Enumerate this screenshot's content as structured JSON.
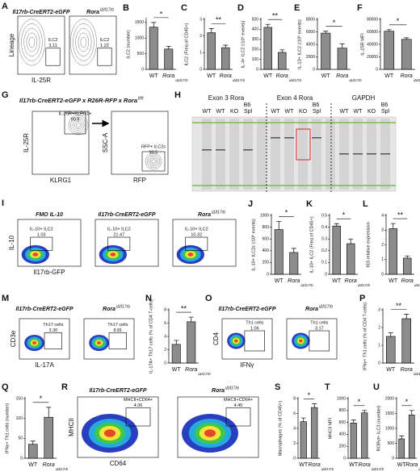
{
  "chart_data": [
    {
      "type": "bar",
      "panel": "B",
      "y_label": "ILC2 (number)",
      "categories": [
        "WT",
        "Rora"
      ],
      "category_superscript": "iΔIl17rb",
      "values": [
        1350,
        650
      ],
      "errors": [
        150,
        90
      ],
      "ylim": [
        0,
        1600
      ],
      "yticks": [
        0,
        500,
        1000,
        1500
      ],
      "significance": "*",
      "color": "#8c8c8c"
    },
    {
      "type": "bar",
      "panel": "C",
      "y_label": "ILC2 (Freq of CD45+)",
      "categories": [
        "WT",
        "Rora"
      ],
      "category_superscript": "iΔIl17rb",
      "values": [
        2.2,
        1.3
      ],
      "errors": [
        0.25,
        0.15
      ],
      "ylim": [
        0,
        3
      ],
      "yticks": [
        0,
        1,
        2,
        3
      ],
      "significance": "**",
      "color": "#8c8c8c"
    },
    {
      "type": "bar",
      "panel": "D",
      "y_label": "IL-4+ ILC2 (/10⁵ events)",
      "categories": [
        "WT",
        "Rora"
      ],
      "category_superscript": "iΔIl17rb",
      "values": [
        420,
        170
      ],
      "errors": [
        30,
        25
      ],
      "ylim": [
        0,
        500
      ],
      "yticks": [
        0,
        100,
        200,
        300,
        400,
        500
      ],
      "significance": "**",
      "color": "#8c8c8c"
    },
    {
      "type": "bar",
      "panel": "E",
      "y_label": "IL-13+ ILC2 (/10⁵ events)",
      "categories": [
        "WT",
        "Rora"
      ],
      "category_superscript": "iΔIl17rb",
      "values": [
        5800,
        3400
      ],
      "errors": [
        300,
        700
      ],
      "ylim": [
        0,
        8000
      ],
      "yticks": [
        0,
        2000,
        4000,
        6000,
        8000
      ],
      "significance": "*",
      "color": "#8c8c8c"
    },
    {
      "type": "bar",
      "panel": "F",
      "y_label": "IL-25R MFI",
      "categories": [
        "WT",
        "Rora"
      ],
      "category_superscript": "iΔIl17rb",
      "values": [
        61000,
        48000
      ],
      "errors": [
        2500,
        2500
      ],
      "ylim": [
        0,
        80000
      ],
      "yticks": [
        0,
        20000,
        40000,
        60000,
        80000
      ],
      "significance": "*",
      "color": "#8c8c8c"
    },
    {
      "type": "bar",
      "panel": "J",
      "y_label": "IL-10+ ILC2s (/10⁶ events)",
      "categories": [
        "WT",
        "Rora"
      ],
      "category_superscript": "iΔIl17rb",
      "values": [
        760,
        370
      ],
      "errors": [
        140,
        70
      ],
      "ylim": [
        0,
        1000
      ],
      "yticks": [
        0,
        200,
        400,
        600,
        800,
        1000
      ],
      "significance": "*",
      "color": "#8c8c8c"
    },
    {
      "type": "bar",
      "panel": "K",
      "y_label": "IL-10+ ILC2 (Freq of CD45+)",
      "categories": [
        "WT",
        "Rora"
      ],
      "category_superscript": "iΔIl17rb",
      "values": [
        0.41,
        0.26
      ],
      "errors": [
        0.02,
        0.04
      ],
      "ylim": [
        0,
        0.5
      ],
      "yticks": [
        0,
        0.1,
        0.2,
        0.3,
        0.4,
        0.5
      ],
      "significance": "*",
      "color": "#8c8c8c"
    },
    {
      "type": "bar",
      "panel": "L",
      "y_label": "Il10 relative expression",
      "categories": [
        "WT",
        "Rora"
      ],
      "category_superscript": "iΔIl17rb",
      "values": [
        3.1,
        1.1
      ],
      "errors": [
        0.35,
        0.15
      ],
      "ylim": [
        0,
        4
      ],
      "yticks": [
        0,
        1,
        2,
        3,
        4
      ],
      "significance": "**",
      "color": "#8c8c8c"
    },
    {
      "type": "bar",
      "panel": "N",
      "y_label": "IL-17A+ Th17 cells (% of CD4 T-cells)",
      "categories": [
        "WT",
        "Rora"
      ],
      "category_superscript": "iΔIl17rb",
      "values": [
        2.8,
        6.2
      ],
      "errors": [
        0.6,
        0.7
      ],
      "ylim": [
        0,
        8
      ],
      "yticks": [
        0,
        2,
        4,
        6,
        8
      ],
      "significance": "**",
      "color": "#8c8c8c"
    },
    {
      "type": "bar",
      "panel": "P",
      "y_label": "IFNγ+ Th1 cells (% of CD4 T-cells)",
      "categories": [
        "WT",
        "Rora"
      ],
      "category_superscript": "iΔIl17rb",
      "values": [
        1.5,
        2.5
      ],
      "errors": [
        0.2,
        0.25
      ],
      "ylim": [
        0,
        3
      ],
      "yticks": [
        0,
        1,
        2,
        3
      ],
      "significance": "**",
      "color": "#8c8c8c"
    },
    {
      "type": "bar",
      "panel": "Q",
      "y_label": "IFNγ+ Th1 cells (number)",
      "categories": [
        "WT",
        "Rora"
      ],
      "category_superscript": "iΔIl17rb",
      "values": [
        35,
        103
      ],
      "errors": [
        8,
        25
      ],
      "ylim": [
        0,
        150
      ],
      "yticks": [
        0,
        50,
        100,
        150
      ],
      "significance": "*",
      "color": "#8c8c8c"
    },
    {
      "type": "bar",
      "panel": "S",
      "y_label": "Macrophages (% of CD45+)",
      "categories": [
        "WT",
        "Rora"
      ],
      "category_superscript": "iΔIl17rb",
      "values": [
        4.9,
        6.8
      ],
      "errors": [
        0.5,
        0.5
      ],
      "ylim": [
        0,
        8
      ],
      "yticks": [
        0,
        2,
        4,
        6,
        8
      ],
      "significance": "*",
      "color": "#8c8c8c"
    },
    {
      "type": "bar",
      "panel": "T",
      "y_label": "MHCII MFI",
      "categories": [
        "WT",
        "Rora"
      ],
      "category_superscript": "iΔIl17rb",
      "values": [
        590,
        760
      ],
      "errors": [
        50,
        40
      ],
      "ylim": [
        0,
        1000
      ],
      "yticks": [
        0,
        200,
        400,
        600,
        800,
        1000
      ],
      "significance": "*",
      "color": "#8c8c8c"
    },
    {
      "type": "bar",
      "panel": "U",
      "y_label": "RORγt+ ILC3 (number)",
      "categories": [
        "WT",
        "Rora"
      ],
      "category_superscript": "iΔIl17rb",
      "values": [
        650,
        1450
      ],
      "errors": [
        100,
        150
      ],
      "ylim": [
        0,
        2000
      ],
      "yticks": [
        0,
        500,
        1000,
        1500,
        2000
      ],
      "significance": "*",
      "color": "#8c8c8c"
    }
  ],
  "figure": {
    "a": {
      "letter": "A",
      "titles": [
        "Il17rb-CreERT2-eGFP",
        "Rora"
      ],
      "superscript": "iΔIl17rb",
      "gates": [
        [
          "ILC2",
          "3.11"
        ],
        [
          "ILC2",
          "1.22"
        ]
      ],
      "y_axis": "Lineage",
      "x_axis": "IL-25R"
    },
    "g": {
      "letter": "G",
      "title": "Il17rb-CreERT2-eGFP  x  R26R-RFP  x  Rora",
      "superscript": "fl/fl",
      "gates": [
        [
          "IL-25R+KLRG1+",
          "90.9"
        ],
        [
          "RFP+ ILC2s",
          "90.5"
        ]
      ],
      "axes": [
        "IL-25R",
        "KLRG1",
        "SSC-A",
        "RFP"
      ]
    },
    "h": {
      "letter": "H",
      "groups": [
        "Exon 3 Rora",
        "Exon 4 Rora",
        "GAPDH"
      ],
      "strains": [
        "B6",
        "B6",
        "B6"
      ],
      "lanes": [
        [
          "WT",
          "WT",
          "KO",
          "Spl"
        ],
        [
          "WT",
          "WT",
          "KO",
          "Spl"
        ],
        [
          "WT",
          "WT",
          "KO",
          "Spl"
        ]
      ]
    },
    "i": {
      "letter": "I",
      "titles": [
        "FMO IL-10",
        "Il17rb-CreERT2-eGFP",
        "Rora"
      ],
      "superscript": "iΔIl17rb",
      "gates": [
        [
          "IL-10+ ILC2",
          "1.03"
        ],
        [
          "IL-10+ ILC2",
          "21.47"
        ],
        [
          "IL-10+ ILC2",
          "10.32"
        ]
      ],
      "y_axis": "IL-10",
      "x_axis": "Il17rb-GFP"
    },
    "m": {
      "letter": "M",
      "titles": [
        "Il17rb-CreERT2-eGFP",
        "Rora"
      ],
      "superscript": "iΔIl17rb",
      "gates": [
        [
          "Th17 cells",
          "3.30"
        ],
        [
          "Th17 cells",
          "8.81"
        ]
      ],
      "y_axis": "CD3e",
      "x_axis": "IL-17A"
    },
    "o": {
      "letter": "O",
      "titles": [
        "Il17rb-CreERT2-eGFP",
        "Rora"
      ],
      "superscript": "iΔIl17rb",
      "gates": [
        [
          "Th1 cells",
          "1.06"
        ],
        [
          "Th1 cells",
          "3.17"
        ]
      ],
      "y_axis": "CD4",
      "x_axis": "IFNγ"
    },
    "r": {
      "letter": "R",
      "titles": [
        "Il17rb-CreERT2-eGFP",
        "Rora"
      ],
      "superscript": "iΔIl17rb",
      "gates": [
        [
          "MHCII+CD64+",
          "4.06"
        ],
        [
          "MHCII+CD64+",
          "4.45"
        ]
      ],
      "y_axis": "MHCII",
      "x_axis": "CD64"
    }
  }
}
